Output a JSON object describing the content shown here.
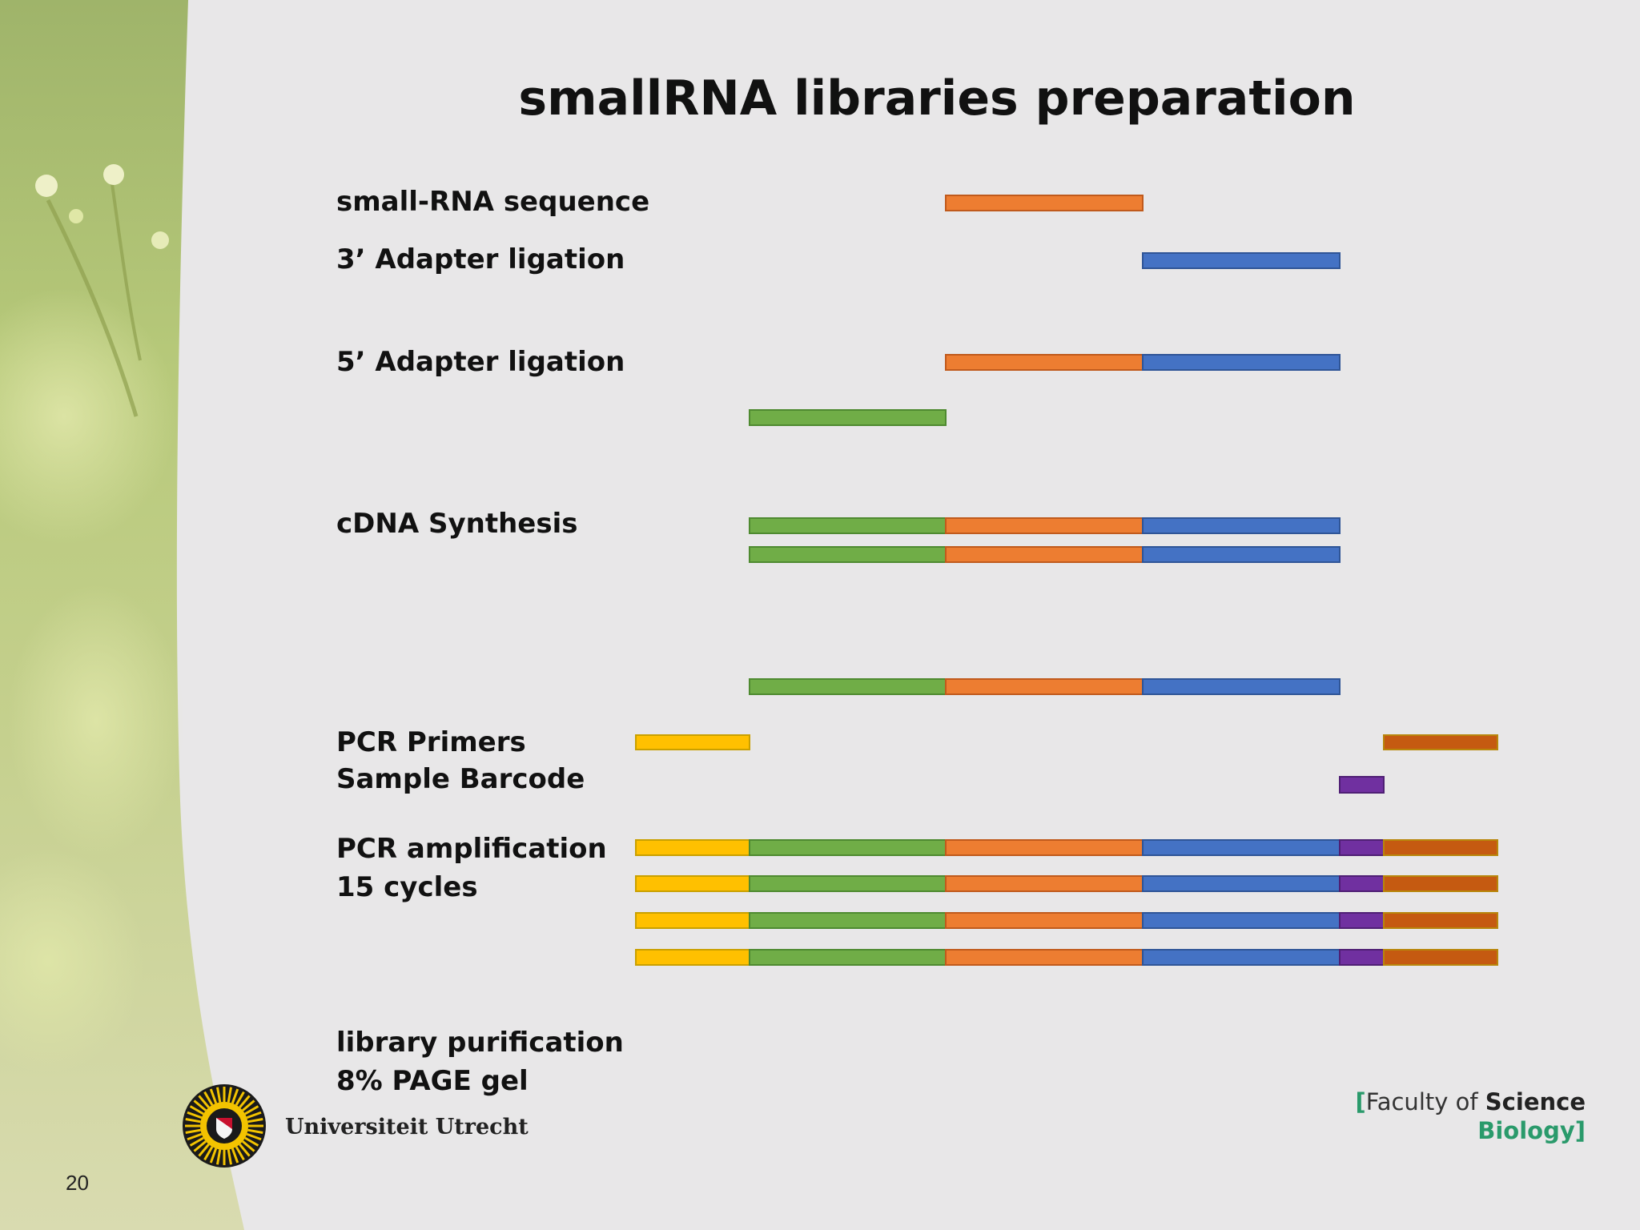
{
  "slide": {
    "title": "smallRNA libraries preparation",
    "page_number": "20"
  },
  "colors": {
    "yellow": "#ffc000",
    "green": "#70ad47",
    "orange": "#ed7d31",
    "blue": "#4472c4",
    "purple": "#7030a0",
    "dark_orange": "#c55a11"
  },
  "steps": [
    {
      "id": "small-rna",
      "lines": [
        "small-RNA sequence"
      ]
    },
    {
      "id": "adapter3",
      "lines": [
        "3’ Adapter ligation"
      ]
    },
    {
      "id": "adapter5",
      "lines": [
        "5’ Adapter ligation"
      ]
    },
    {
      "id": "cdna",
      "lines": [
        "cDNA Synthesis"
      ]
    },
    {
      "id": "pcr-primers",
      "lines": [
        "PCR Primers",
        "Sample Barcode"
      ]
    },
    {
      "id": "pcr-amp",
      "lines": [
        "PCR amplification",
        "15 cycles"
      ]
    },
    {
      "id": "purification",
      "lines": [
        "library purification",
        "8% PAGE gel"
      ]
    }
  ],
  "segments": {
    "order": [
      "yellow",
      "green",
      "orange",
      "blue",
      "purple",
      "dark_orange"
    ],
    "names": {
      "yellow": "pcr-primer-5",
      "green": "adapter-5",
      "orange": "small-rna",
      "blue": "adapter-3",
      "purple": "barcode",
      "dark_orange": "pcr-primer-3"
    }
  },
  "rows": [
    {
      "name": "row-small-rna",
      "segments": [
        "orange"
      ]
    },
    {
      "name": "row-adapter3",
      "segments": [
        "blue"
      ]
    },
    {
      "name": "row-ligated",
      "segments": [
        "orange",
        "blue"
      ]
    },
    {
      "name": "row-adapter5",
      "segments": [
        "green"
      ]
    },
    {
      "name": "row-cdna-1",
      "segments": [
        "green",
        "orange",
        "blue"
      ]
    },
    {
      "name": "row-cdna-2",
      "segments": [
        "green",
        "orange",
        "blue"
      ]
    },
    {
      "name": "row-template",
      "segments": [
        "green",
        "orange",
        "blue"
      ]
    },
    {
      "name": "row-primer-5",
      "segments": [
        "yellow"
      ]
    },
    {
      "name": "row-primer-3",
      "segments": [
        "dark_orange"
      ]
    },
    {
      "name": "row-barcode",
      "segments": [
        "purple"
      ]
    },
    {
      "name": "row-amplicon-1",
      "segments": [
        "yellow",
        "green",
        "orange",
        "blue",
        "purple",
        "dark_orange"
      ]
    },
    {
      "name": "row-amplicon-2",
      "segments": [
        "yellow",
        "green",
        "orange",
        "blue",
        "purple",
        "dark_orange"
      ]
    },
    {
      "name": "row-amplicon-3",
      "segments": [
        "yellow",
        "green",
        "orange",
        "blue",
        "purple",
        "dark_orange"
      ]
    },
    {
      "name": "row-amplicon-4",
      "segments": [
        "yellow",
        "green",
        "orange",
        "blue",
        "purple",
        "dark_orange"
      ]
    }
  ],
  "logos": {
    "university": "Universiteit Utrecht",
    "faculty_bracket_open": "[",
    "faculty_prefix": "Faculty of ",
    "faculty_bold": "Science",
    "faculty_dept": "Biology",
    "faculty_bracket_close": "]"
  }
}
